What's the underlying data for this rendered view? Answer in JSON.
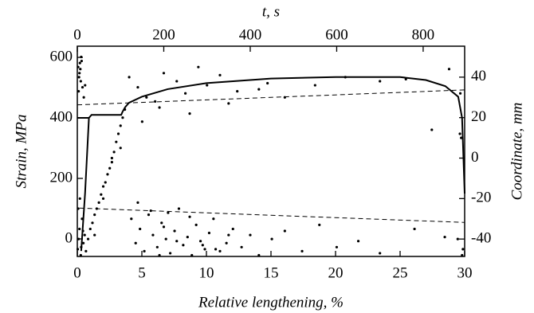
{
  "chart_data": {
    "type": "scatter",
    "xlabel": "Relative lengthening, %",
    "x2label": "t, s",
    "ylabel": "Strain, MPa",
    "y2label": "Coordinate, mm",
    "xlim": [
      0,
      30
    ],
    "xticks": [
      0,
      5,
      10,
      15,
      20,
      25,
      30
    ],
    "x2lim": [
      0,
      896
    ],
    "x2ticks": [
      0,
      200,
      400,
      600,
      800
    ],
    "ylim": [
      -58,
      637
    ],
    "yticks": [
      0,
      200,
      400,
      600
    ],
    "y2lim": [
      -48.6,
      55.3
    ],
    "y2ticks": [
      -40,
      -20,
      0,
      20,
      40
    ],
    "series": [
      {
        "style": "solid",
        "color": "#000000",
        "x": [
          0.3,
          0.6,
          0.9,
          0,
          0.9,
          1.1,
          3.4,
          3.5,
          3.7,
          4,
          5,
          7,
          10,
          15,
          20,
          25,
          27,
          28.5,
          29.5,
          29.8,
          30
        ],
        "values": [
          -40,
          150,
          400,
          400,
          400,
          410,
          410,
          420,
          435,
          450,
          470,
          495,
          515,
          530,
          535,
          535,
          525,
          505,
          470,
          400,
          150
        ]
      },
      {
        "style": "dashed",
        "color": "#000000",
        "axis": "y2",
        "xaxis": "x2",
        "x": [
          0,
          896
        ],
        "values": [
          26.3,
          33.7
        ]
      },
      {
        "style": "dashed",
        "color": "#000000",
        "axis": "y2",
        "xaxis": "x2",
        "x": [
          5,
          896
        ],
        "values": [
          -24.7,
          -31.8
        ]
      },
      {
        "style": "dots",
        "color": "#000000",
        "axis": "y2",
        "xaxis": "x2",
        "x": [
          2,
          5,
          8,
          10,
          12,
          4,
          7,
          15,
          18,
          3,
          6,
          9,
          1,
          3,
          5,
          8,
          11,
          14,
          17,
          20,
          2,
          6,
          9,
          13,
          25,
          30,
          35,
          40,
          45,
          50,
          55,
          60,
          65,
          70,
          75,
          80,
          85,
          90,
          95,
          100,
          105,
          110,
          40,
          60,
          80,
          100,
          120,
          140,
          160,
          180,
          200,
          230,
          260,
          300,
          330,
          370,
          420,
          480,
          550,
          620,
          700,
          760,
          820,
          860,
          150,
          190,
          250,
          280,
          350,
          440,
          125,
          135,
          145,
          155,
          165,
          175,
          185,
          195,
          205,
          215,
          225,
          235,
          245,
          255,
          265,
          275,
          285,
          295,
          305,
          315,
          330,
          345,
          360,
          380,
          400,
          420,
          450,
          480,
          520,
          560,
          600,
          650,
          700,
          780,
          850,
          140,
          170,
          200,
          230,
          260,
          290,
          320,
          350,
          190,
          210,
          885,
          888,
          892,
          890,
          880,
          886
        ],
        "values": [
          45,
          42,
          38,
          48,
          35,
          40,
          44,
          30,
          36,
          33,
          47,
          50,
          -45,
          -40,
          -35,
          -48,
          -30,
          -42,
          -38,
          -46,
          -25,
          -20,
          -44,
          -36,
          -40,
          -35,
          -32,
          -28,
          -25,
          -22,
          -18,
          -14,
          -12,
          -8,
          -5,
          0,
          3,
          8,
          12,
          16,
          20,
          24,
          -38,
          -20,
          -2,
          5,
          40,
          35,
          30,
          28,
          42,
          38,
          22,
          36,
          41,
          33,
          34,
          30,
          36,
          40,
          38,
          39,
          14,
          44,
          18,
          25,
          32,
          45,
          27,
          37,
          -30,
          -42,
          -35,
          -46,
          -28,
          -38,
          -44,
          -32,
          -40,
          -47,
          -36,
          -25,
          -43,
          -39,
          -48,
          -33,
          -41,
          -45,
          -37,
          -30,
          -46,
          -42,
          -35,
          -44,
          -38,
          -48,
          -40,
          -36,
          -46,
          -33,
          -44,
          -41,
          -47,
          -35,
          -39,
          -22,
          -26,
          -34,
          -41,
          -29,
          -43,
          -45,
          -38,
          -48,
          -27,
          12,
          10,
          -45,
          -48,
          -40,
          32
        ]
      }
    ]
  }
}
